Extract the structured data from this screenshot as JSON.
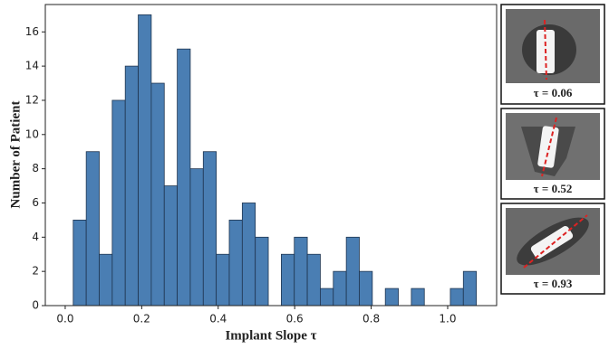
{
  "chart_data": {
    "type": "histogram",
    "xlabel": "Implant Slope τ",
    "ylabel": "Number of Patient",
    "bins": [
      0.021,
      0.055,
      0.089,
      0.123,
      0.157,
      0.191,
      0.225,
      0.259,
      0.293,
      0.327,
      0.361,
      0.395,
      0.429,
      0.463,
      0.497,
      0.531,
      0.565,
      0.599,
      0.633,
      0.667,
      0.701,
      0.735,
      0.769,
      0.803,
      0.837,
      0.871,
      0.905,
      0.939,
      0.973,
      1.007,
      1.041,
      1.075
    ],
    "values": [
      5,
      9,
      3,
      12,
      14,
      17,
      13,
      7,
      15,
      8,
      9,
      3,
      5,
      6,
      4,
      0,
      3,
      4,
      3,
      1,
      2,
      4,
      2,
      0,
      1,
      0,
      1,
      0,
      0,
      1,
      2
    ],
    "color": "#4a7eb3",
    "xlim": [
      -0.052,
      1.128
    ],
    "ylim": [
      0,
      17.6
    ],
    "xticks": [
      {
        "value": 0,
        "label": "0.0"
      },
      0.2,
      0.4,
      0.6,
      0.8,
      {
        "value": 1,
        "label": "1.0"
      }
    ],
    "yticks": [
      0,
      2,
      4,
      6,
      8,
      10,
      12,
      14,
      16
    ],
    "annotations": [
      "τ = 0.06",
      "τ = 0.52",
      "τ = 0.93"
    ]
  }
}
